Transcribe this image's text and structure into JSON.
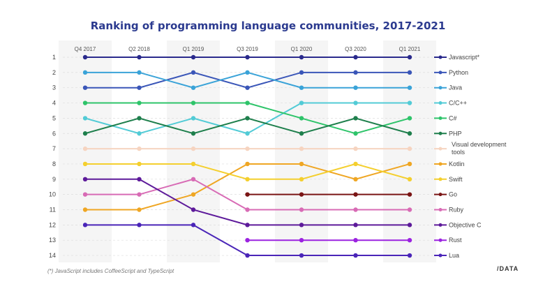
{
  "chart_data": {
    "type": "line",
    "subtype": "bump",
    "title": "Ranking of programming language communities, 2017-2021",
    "categories": [
      "Q4 2017",
      "Q2 2018",
      "Q1 2019",
      "Q3 2019",
      "Q1 2020",
      "Q3 2020",
      "Q1 2021"
    ],
    "ylim": [
      1,
      14
    ],
    "y_reversed": true,
    "y_ticks": [
      1,
      2,
      3,
      4,
      5,
      6,
      7,
      8,
      9,
      10,
      11,
      12,
      13,
      14
    ],
    "legend_position": "right",
    "series": [
      {
        "name": "Javascript*",
        "color": "#2a2a8c",
        "values": [
          1,
          1,
          1,
          1,
          1,
          1,
          1
        ]
      },
      {
        "name": "Python",
        "color": "#3a56b8",
        "values": [
          3,
          3,
          2,
          3,
          2,
          2,
          2
        ]
      },
      {
        "name": "Java",
        "color": "#3aa3d8",
        "values": [
          2,
          2,
          3,
          2,
          3,
          3,
          3
        ]
      },
      {
        "name": "C/C++",
        "color": "#52cbd6",
        "values": [
          5,
          6,
          5,
          6,
          4,
          4,
          4
        ]
      },
      {
        "name": "C#",
        "color": "#2ec46a",
        "values": [
          4,
          4,
          4,
          4,
          5,
          6,
          5
        ]
      },
      {
        "name": "PHP",
        "color": "#1e7f4c",
        "values": [
          6,
          5,
          6,
          5,
          6,
          5,
          6
        ]
      },
      {
        "name": "Visual development tools",
        "color": "#f6d4c0",
        "values": [
          7,
          7,
          7,
          7,
          7,
          7,
          7
        ]
      },
      {
        "name": "Kotlin",
        "color": "#efa623",
        "values": [
          11,
          11,
          10,
          8,
          8,
          9,
          8
        ]
      },
      {
        "name": "Swift",
        "color": "#f4cf2e",
        "values": [
          8,
          8,
          8,
          9,
          9,
          8,
          9
        ]
      },
      {
        "name": "Go",
        "color": "#7a1414",
        "values": [
          null,
          null,
          null,
          10,
          10,
          10,
          10
        ]
      },
      {
        "name": "Ruby",
        "color": "#d86bb5",
        "values": [
          10,
          10,
          9,
          11,
          11,
          11,
          11
        ]
      },
      {
        "name": "Objective C",
        "color": "#5d1a9a",
        "values": [
          9,
          9,
          11,
          12,
          12,
          12,
          12
        ]
      },
      {
        "name": "Rust",
        "color": "#9b22e0",
        "values": [
          null,
          null,
          null,
          13,
          13,
          13,
          13
        ]
      },
      {
        "name": "Lua",
        "color": "#4a25b8",
        "values": [
          12,
          12,
          12,
          14,
          14,
          14,
          14
        ]
      }
    ]
  },
  "footnote": "(*) JavaScript includes CoffeeScript and TypeScript",
  "logo": "/DATA"
}
